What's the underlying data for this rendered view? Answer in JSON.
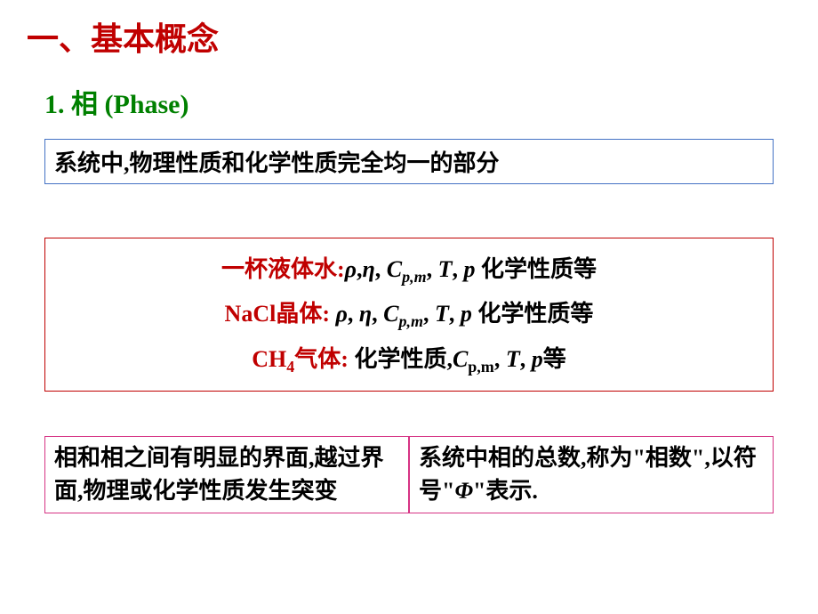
{
  "heading": {
    "main": "一、基本概念",
    "main_color": "#c00000",
    "sub": "1. 相 (Phase)",
    "sub_color": "#008000"
  },
  "definition": {
    "text": "系统中,物理性质和化学性质完全均一的部分",
    "border_color": "#4472c4"
  },
  "examples": {
    "border_color": "#c00000",
    "line1_prefix": "一杯液体水:",
    "line1_prefix_color": "#c00000",
    "line1_rest": " 化学性质等",
    "line2_prefix": "NaCl晶体: ",
    "line2_prefix_color": "#c00000",
    "line2_rest": " 化学性质等",
    "line3_prefix1": "CH",
    "line3_prefix2": "气体: ",
    "line3_prefix_color": "#c00000",
    "line3_rest_prefix": "化学性质,",
    "line3_rest_suffix": "等",
    "cpm_c": "C",
    "cpm_sub": "p,m",
    "tp_t": "T",
    "tp_p": "p",
    "rho": "ρ",
    "eta": "η",
    "ch4_sub": "4"
  },
  "bottom": {
    "border_color": "#d63384",
    "left": "相和相之间有明显的界面,越过界面,物理或化学性质发生突变",
    "right_part1": "系统中相的总数,称为\"相数\",以符号\"",
    "right_phi": "Φ",
    "right_part2": "\"表示."
  },
  "colors": {
    "black": "#000000"
  }
}
